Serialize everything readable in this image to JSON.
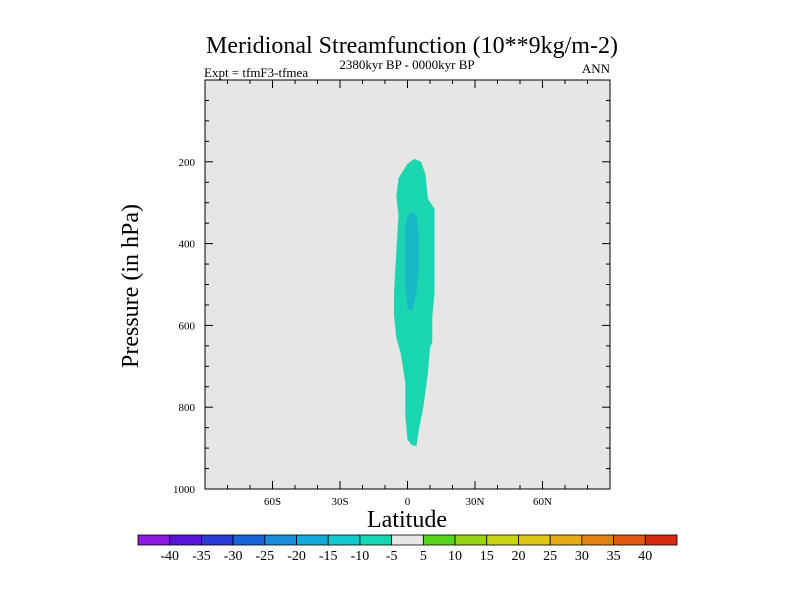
{
  "chart_data": {
    "type": "contour",
    "title": "Meridional Streamfunction (10**9kg/m-2)",
    "subtitle": "2380kyr BP - 0000kyr BP",
    "left_label": "Expt = tfmF3-tfmea",
    "right_label": "ANN",
    "xlabel": "Latitude",
    "ylabel": "Pressure (in hPa)",
    "xlim": [
      -90,
      90
    ],
    "ylim": [
      1000,
      0
    ],
    "x_ticks": [
      {
        "value": -60,
        "label": "60S"
      },
      {
        "value": -30,
        "label": "30S"
      },
      {
        "value": 0,
        "label": "0"
      },
      {
        "value": 30,
        "label": "30N"
      },
      {
        "value": 60,
        "label": "60N"
      }
    ],
    "y_ticks": [
      {
        "value": 200,
        "label": "200"
      },
      {
        "value": 400,
        "label": "400"
      },
      {
        "value": 600,
        "label": "600"
      },
      {
        "value": 800,
        "label": "800"
      },
      {
        "value": 1000,
        "label": "1000"
      }
    ],
    "background_level": "-5 to 5",
    "regions": [
      {
        "name": "negative-cell-outer",
        "range": "-10 to -5",
        "color": "#1ad6b0",
        "outline": [
          [
            3,
            193
          ],
          [
            6,
            200
          ],
          [
            8,
            230
          ],
          [
            9,
            290
          ],
          [
            12,
            315
          ],
          [
            12,
            400
          ],
          [
            12,
            520
          ],
          [
            11,
            580
          ],
          [
            11,
            640
          ],
          [
            10,
            655
          ],
          [
            9,
            720
          ],
          [
            7,
            800
          ],
          [
            5,
            855
          ],
          [
            4,
            895
          ],
          [
            2,
            893
          ],
          [
            0,
            880
          ],
          [
            -1,
            820
          ],
          [
            -1,
            740
          ],
          [
            -3,
            670
          ],
          [
            -5,
            630
          ],
          [
            -6,
            575
          ],
          [
            -6,
            520
          ],
          [
            -5,
            420
          ],
          [
            -4,
            330
          ],
          [
            -5,
            285
          ],
          [
            -4,
            240
          ],
          [
            0,
            205
          ]
        ]
      },
      {
        "name": "negative-cell-inner",
        "range": "-15 to -10",
        "color": "#17b8c8",
        "outline": [
          [
            0,
            335
          ],
          [
            2,
            322
          ],
          [
            4,
            330
          ],
          [
            5,
            380
          ],
          [
            5,
            460
          ],
          [
            4,
            520
          ],
          [
            2,
            565
          ],
          [
            0,
            558
          ],
          [
            -1,
            500
          ],
          [
            -1,
            420
          ],
          [
            -1,
            360
          ]
        ]
      }
    ],
    "colorbar": {
      "labels": [
        "-40",
        "-35",
        "-30",
        "-25",
        "-20",
        "-15",
        "-10",
        "-5",
        "5",
        "10",
        "15",
        "20",
        "25",
        "30",
        "35",
        "40"
      ],
      "colors": [
        "#8a1ae0",
        "#5a14d8",
        "#2a3ad8",
        "#1a64d8",
        "#1a8cdc",
        "#14aadc",
        "#14c8d2",
        "#14d8b4",
        "#e6e6e6",
        "#5ad41e",
        "#96d214",
        "#c8d414",
        "#e0c614",
        "#e8aa14",
        "#e48214",
        "#e05814",
        "#d82810"
      ]
    }
  }
}
